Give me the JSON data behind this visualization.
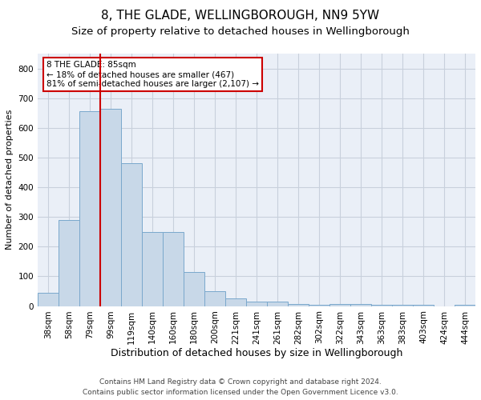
{
  "title1": "8, THE GLADE, WELLINGBOROUGH, NN9 5YW",
  "title2": "Size of property relative to detached houses in Wellingborough",
  "xlabel": "Distribution of detached houses by size in Wellingborough",
  "ylabel": "Number of detached properties",
  "categories": [
    "38sqm",
    "58sqm",
    "79sqm",
    "99sqm",
    "119sqm",
    "140sqm",
    "160sqm",
    "180sqm",
    "200sqm",
    "221sqm",
    "241sqm",
    "261sqm",
    "282sqm",
    "302sqm",
    "322sqm",
    "343sqm",
    "363sqm",
    "383sqm",
    "403sqm",
    "424sqm",
    "444sqm"
  ],
  "values": [
    45,
    290,
    655,
    665,
    480,
    250,
    250,
    115,
    50,
    25,
    15,
    15,
    8,
    5,
    8,
    8,
    5,
    5,
    5,
    0,
    5
  ],
  "bar_color": "#c8d8e8",
  "bar_edge_color": "#7aa8cc",
  "vline_x_index": 2.5,
  "vline_color": "#cc0000",
  "annotation_text": "8 THE GLADE: 85sqm\n← 18% of detached houses are smaller (467)\n81% of semi-detached houses are larger (2,107) →",
  "annotation_box_color": "#ffffff",
  "annotation_box_edge_color": "#cc0000",
  "ylim": [
    0,
    850
  ],
  "yticks": [
    0,
    100,
    200,
    300,
    400,
    500,
    600,
    700,
    800
  ],
  "grid_color": "#c8d0dc",
  "background_color": "#eaeff7",
  "footer1": "Contains HM Land Registry data © Crown copyright and database right 2024.",
  "footer2": "Contains public sector information licensed under the Open Government Licence v3.0.",
  "title1_fontsize": 11,
  "title2_fontsize": 9.5,
  "xlabel_fontsize": 9,
  "ylabel_fontsize": 8,
  "tick_fontsize": 7.5,
  "annotation_fontsize": 7.5,
  "footer_fontsize": 6.5
}
